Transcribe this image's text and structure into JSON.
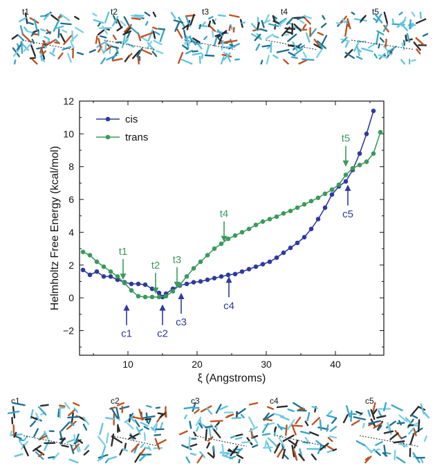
{
  "top_snapshots": [
    {
      "label": "t1",
      "icon": "molecule-structure-t1"
    },
    {
      "label": "t2",
      "icon": "molecule-structure-t2"
    },
    {
      "label": "t3",
      "icon": "molecule-structure-t3"
    },
    {
      "label": "t4",
      "icon": "molecule-structure-t4"
    },
    {
      "label": "t5",
      "icon": "molecule-structure-t5"
    }
  ],
  "bottom_snapshots": [
    {
      "label": "c1",
      "icon": "molecule-structure-c1"
    },
    {
      "label": "c2",
      "icon": "molecule-structure-c2"
    },
    {
      "label": "c3",
      "icon": "molecule-structure-c3"
    },
    {
      "label": "c4",
      "icon": "molecule-structure-c4"
    },
    {
      "label": "c5",
      "icon": "molecule-structure-c5"
    }
  ],
  "chart_data": {
    "type": "line",
    "xlabel": "ξ (Angstroms)",
    "ylabel": "Helmholtz Free Energy (kcal/mol)",
    "xlim": [
      3,
      47
    ],
    "ylim": [
      -3.5,
      12
    ],
    "xticks": [
      10,
      20,
      30,
      40
    ],
    "yticks": [
      -2,
      0,
      2,
      4,
      6,
      8,
      10,
      12
    ],
    "grid": false,
    "legend_position": "top-left",
    "series": [
      {
        "name": "cis",
        "color": "#2e3a9e",
        "x": [
          3.5,
          4.5,
          5.5,
          6.5,
          7.5,
          8.5,
          9.5,
          10.5,
          11.5,
          12.5,
          13.5,
          14.5,
          15.0,
          15.5,
          16.5,
          17.5,
          18.5,
          19.5,
          20.5,
          21.5,
          22.5,
          23.5,
          24.5,
          25.5,
          26.5,
          27.5,
          28.5,
          29.5,
          30.5,
          31.5,
          32.5,
          33.5,
          34.5,
          35.5,
          36.5,
          37.5,
          38.5,
          39.5,
          40.5,
          41.5,
          42.5,
          43.5,
          44.5,
          45.5
        ],
        "y": [
          1.7,
          1.4,
          1.6,
          1.3,
          1.3,
          1.1,
          0.95,
          0.85,
          0.85,
          0.8,
          0.55,
          0.3,
          0.05,
          0.25,
          0.55,
          0.75,
          0.85,
          0.95,
          1.0,
          1.1,
          1.2,
          1.3,
          1.4,
          1.45,
          1.6,
          1.75,
          1.9,
          2.05,
          2.2,
          2.45,
          2.75,
          3.05,
          3.35,
          3.7,
          4.2,
          4.8,
          5.5,
          6.3,
          6.8,
          7.1,
          7.8,
          8.8,
          10.0,
          11.4
        ]
      },
      {
        "name": "trans",
        "color": "#3a9a5c",
        "x": [
          3.5,
          4.5,
          5.5,
          6.5,
          7.5,
          8.5,
          9.5,
          10.5,
          11.5,
          12.5,
          13.5,
          14.5,
          15.5,
          16.5,
          17.5,
          18.5,
          19.5,
          20.5,
          21.5,
          22.5,
          23.5,
          24.5,
          25.5,
          26.5,
          27.5,
          28.5,
          29.5,
          30.5,
          31.5,
          32.5,
          33.5,
          34.5,
          35.5,
          36.5,
          37.5,
          38.5,
          39.5,
          40.5,
          41.5,
          42.5,
          43.5,
          44.5,
          45.5,
          46.5
        ],
        "y": [
          2.8,
          2.6,
          2.2,
          1.9,
          1.6,
          1.3,
          0.9,
          0.45,
          0.1,
          0.05,
          0.05,
          0.05,
          0.1,
          0.4,
          0.8,
          1.3,
          1.8,
          2.2,
          2.6,
          3.0,
          3.3,
          3.6,
          3.8,
          4.0,
          4.2,
          4.45,
          4.65,
          4.8,
          4.95,
          5.15,
          5.3,
          5.5,
          5.7,
          5.9,
          6.1,
          6.35,
          6.6,
          6.9,
          7.5,
          7.9,
          8.1,
          8.3,
          8.8,
          10.1
        ]
      }
    ],
    "annotations": [
      {
        "text": "t1",
        "x": 9.3,
        "y_tip": 1.1,
        "series": "trans",
        "side": "above"
      },
      {
        "text": "t2",
        "x": 14.0,
        "y_tip": 0.25,
        "series": "trans",
        "side": "above"
      },
      {
        "text": "t3",
        "x": 17.1,
        "y_tip": 0.6,
        "series": "trans",
        "side": "above"
      },
      {
        "text": "t4",
        "x": 23.9,
        "y_tip": 3.4,
        "series": "trans",
        "side": "above"
      },
      {
        "text": "t5",
        "x": 41.5,
        "y_tip": 8.0,
        "series": "trans",
        "side": "above"
      },
      {
        "text": "c1",
        "x": 9.8,
        "y_tip": -0.4,
        "series": "cis",
        "side": "below"
      },
      {
        "text": "c2",
        "x": 15.0,
        "y_tip": -0.4,
        "series": "cis",
        "side": "below"
      },
      {
        "text": "c3",
        "x": 17.7,
        "y_tip": 0.3,
        "series": "cis",
        "side": "below"
      },
      {
        "text": "c4",
        "x": 24.6,
        "y_tip": 1.3,
        "series": "cis",
        "side": "below"
      },
      {
        "text": "c5",
        "x": 41.8,
        "y_tip": 6.9,
        "series": "cis",
        "side": "below"
      }
    ]
  }
}
